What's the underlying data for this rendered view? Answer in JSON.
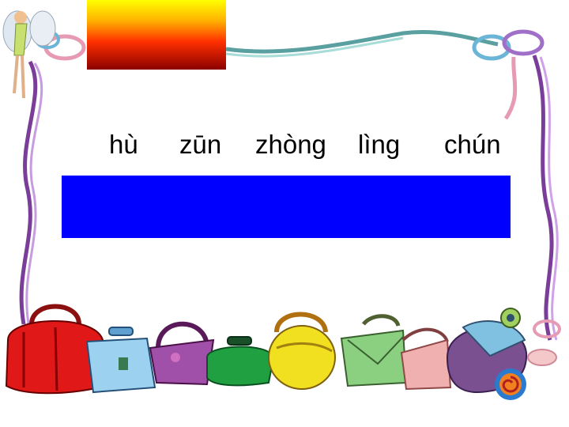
{
  "pinyin_words": [
    "hù",
    "zūn",
    "zhòng",
    "lìng",
    "chún"
  ],
  "colors": {
    "background": "#ffffff",
    "panel": "#0000ff",
    "text": "#000000"
  },
  "decorations": [
    "ribbon-frame",
    "fairy-icon",
    "handbag-row",
    "sun-swirl-icon"
  ]
}
